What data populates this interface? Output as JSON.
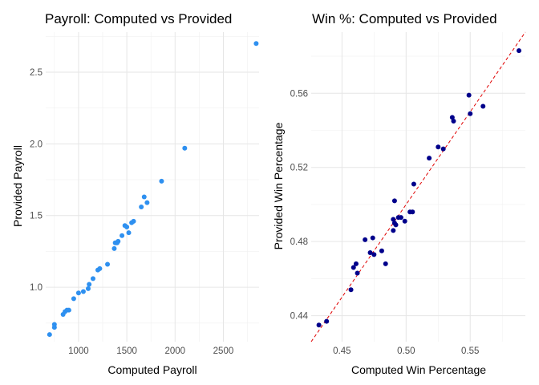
{
  "chart_data": [
    {
      "type": "scatter",
      "title": "Payroll: Computed vs Provided",
      "xlabel": "Computed Payroll",
      "ylabel": "Provided Payroll",
      "xlim": [
        660,
        2870
      ],
      "ylim": [
        0.62,
        2.78
      ],
      "xticks": [
        1000,
        1500,
        2000,
        2500
      ],
      "xtick_labels": [
        "1000",
        "1500",
        "2000",
        "2500"
      ],
      "yticks": [
        1.0,
        1.5,
        2.0,
        2.5
      ],
      "ytick_labels": [
        "1.0",
        "1.5",
        "2.0",
        "2.5"
      ],
      "grid": true,
      "point_color": "#2E90F0",
      "x": [
        700,
        750,
        750,
        840,
        860,
        880,
        900,
        950,
        1000,
        1050,
        1100,
        1110,
        1150,
        1200,
        1220,
        1300,
        1370,
        1380,
        1390,
        1400,
        1410,
        1450,
        1480,
        1500,
        1520,
        1550,
        1570,
        1650,
        1680,
        1710,
        1860,
        2100,
        2840
      ],
      "y": [
        0.67,
        0.72,
        0.74,
        0.81,
        0.83,
        0.84,
        0.84,
        0.92,
        0.96,
        0.97,
        0.99,
        1.02,
        1.06,
        1.12,
        1.13,
        1.16,
        1.27,
        1.31,
        1.31,
        1.31,
        1.32,
        1.36,
        1.43,
        1.42,
        1.38,
        1.45,
        1.46,
        1.56,
        1.63,
        1.59,
        1.74,
        1.97,
        2.7
      ]
    },
    {
      "type": "scatter",
      "title": "Win %: Computed vs Provided",
      "xlabel": "Computed Win Percentage",
      "ylabel": "Provided Win Percentage",
      "xlim": [
        0.426,
        0.593
      ],
      "ylim": [
        0.426,
        0.593
      ],
      "xticks": [
        0.45,
        0.5,
        0.55
      ],
      "xtick_labels": [
        "0.45",
        "0.50",
        "0.55"
      ],
      "yticks": [
        0.44,
        0.48,
        0.52,
        0.56
      ],
      "ytick_labels": [
        "0.44",
        "0.48",
        "0.52",
        "0.56"
      ],
      "grid": true,
      "point_color": "#00008B",
      "reference_line": {
        "slope": 1,
        "intercept": 0,
        "style": "dashed",
        "color": "#E00000"
      },
      "x": [
        0.432,
        0.438,
        0.457,
        0.459,
        0.461,
        0.462,
        0.468,
        0.472,
        0.474,
        0.475,
        0.481,
        0.484,
        0.49,
        0.49,
        0.491,
        0.491,
        0.492,
        0.494,
        0.496,
        0.499,
        0.503,
        0.505,
        0.506,
        0.518,
        0.525,
        0.529,
        0.536,
        0.537,
        0.549,
        0.55,
        0.56,
        0.588
      ],
      "y": [
        0.435,
        0.437,
        0.454,
        0.466,
        0.468,
        0.463,
        0.481,
        0.474,
        0.482,
        0.473,
        0.475,
        0.468,
        0.492,
        0.486,
        0.502,
        0.49,
        0.489,
        0.493,
        0.493,
        0.491,
        0.496,
        0.496,
        0.511,
        0.525,
        0.531,
        0.53,
        0.547,
        0.545,
        0.559,
        0.549,
        0.553,
        0.583
      ]
    }
  ]
}
